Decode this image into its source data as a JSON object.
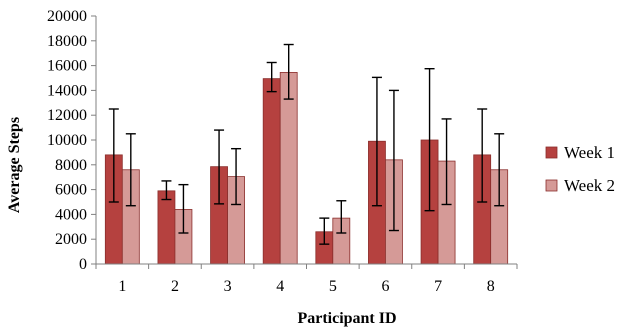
{
  "chart_data": {
    "type": "bar",
    "title": "",
    "xlabel": "Participant ID",
    "ylabel": "Average Steps",
    "categories": [
      "1",
      "2",
      "3",
      "4",
      "5",
      "6",
      "7",
      "8"
    ],
    "ylim": [
      0,
      20000
    ],
    "yticks": [
      0,
      2000,
      4000,
      6000,
      8000,
      10000,
      12000,
      14000,
      16000,
      18000,
      20000
    ],
    "grid": false,
    "legend_position": "right",
    "series": [
      {
        "name": "Week 1",
        "color": "#b5413f",
        "values": [
          8800,
          5900,
          7850,
          14950,
          2600,
          9900,
          10000,
          8800
        ],
        "error_low": [
          5000,
          5200,
          4850,
          13900,
          1600,
          4700,
          4300,
          5000
        ],
        "error_high": [
          12500,
          6700,
          10800,
          16250,
          3700,
          15050,
          15750,
          12500
        ]
      },
      {
        "name": "Week 2",
        "color": "#d59a97",
        "values": [
          7600,
          4400,
          7050,
          15450,
          3700,
          8400,
          8300,
          7600
        ],
        "error_low": [
          4700,
          2500,
          4800,
          13300,
          2500,
          2700,
          4800,
          4700
        ],
        "error_high": [
          10500,
          6400,
          9300,
          17700,
          5100,
          14000,
          11700,
          10500
        ]
      }
    ]
  }
}
